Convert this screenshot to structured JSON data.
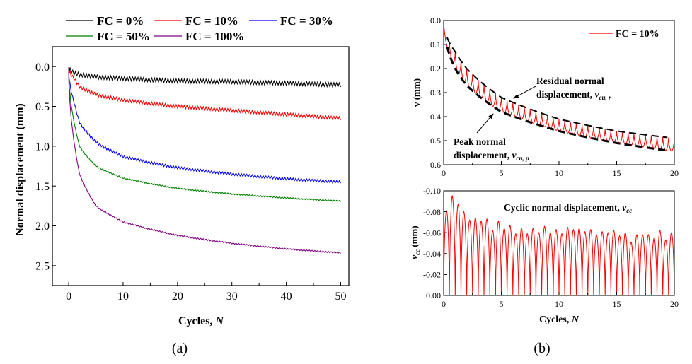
{
  "chart_data": [
    {
      "panel": "(a)",
      "type": "line",
      "xlabel": "Cycles, N",
      "ylabel": "Normal displacement (mm)",
      "xlim": [
        -3,
        51.5
      ],
      "ylim": [
        -0.25,
        2.75
      ],
      "y_inverted": true,
      "xticks": [
        0,
        10,
        20,
        30,
        40,
        50
      ],
      "yticks": [
        0.0,
        0.5,
        1.0,
        1.5,
        2.0,
        2.5
      ],
      "ytick_labels": [
        "0.0",
        "0.5",
        "1.0",
        "1.5",
        "2.0",
        "2.5"
      ],
      "legend_placement": "top, outside",
      "x": [
        0,
        1,
        2,
        5,
        10,
        20,
        30,
        40,
        50
      ],
      "series": [
        {
          "name": "FC = 0%",
          "color": "#000000",
          "values": [
            0,
            0.08,
            0.1,
            0.13,
            0.15,
            0.18,
            0.19,
            0.21,
            0.23
          ],
          "oscillation": 0.05
        },
        {
          "name": "FC = 10%",
          "color": "#ff0000",
          "values": [
            0,
            0.15,
            0.25,
            0.35,
            0.42,
            0.5,
            0.55,
            0.6,
            0.65
          ],
          "oscillation": 0.04
        },
        {
          "name": "FC = 30%",
          "color": "#0000ff",
          "values": [
            0,
            0.45,
            0.7,
            0.95,
            1.13,
            1.27,
            1.35,
            1.41,
            1.45
          ],
          "oscillation": 0.03
        },
        {
          "name": "FC = 50%",
          "color": "#008000",
          "values": [
            0,
            0.7,
            1.0,
            1.25,
            1.4,
            1.53,
            1.6,
            1.65,
            1.69
          ],
          "oscillation": 0.015
        },
        {
          "name": "FC = 100%",
          "color": "#800080",
          "values": [
            0,
            0.95,
            1.35,
            1.75,
            1.95,
            2.12,
            2.22,
            2.29,
            2.34
          ],
          "oscillation": 0.015
        }
      ]
    },
    {
      "panel": "(b) top",
      "type": "line",
      "xlabel": "",
      "ylabel": "v (mm)",
      "xlim": [
        0,
        20
      ],
      "ylim": [
        0,
        0.6
      ],
      "y_inverted": true,
      "xticks": [
        0,
        5,
        10,
        15,
        20
      ],
      "yticks": [
        0.0,
        0.1,
        0.2,
        0.3,
        0.4,
        0.5,
        0.6
      ],
      "ytick_labels": [
        "0.0",
        "0.1",
        "0.2",
        "0.3",
        "0.4",
        "0.5",
        "0.6"
      ],
      "legend_placement": "top-right",
      "x": [
        0,
        1,
        2,
        5,
        10,
        15,
        20
      ],
      "series": [
        {
          "name": "FC = 10%",
          "color": "#ff0000",
          "cycle_period": 0.5
        }
      ],
      "envelopes": [
        {
          "label_line1": "Residual normal",
          "label_line2": "displacement, ",
          "symbol": "v",
          "subscript": "cu, r",
          "values": [
            0,
            0.13,
            0.2,
            0.32,
            0.41,
            0.46,
            0.49
          ]
        },
        {
          "label_line1": "Peak normal",
          "label_line2": "displacement, ",
          "symbol": "v",
          "subscript": "cu, p",
          "values": [
            0,
            0.2,
            0.27,
            0.38,
            0.46,
            0.51,
            0.545
          ]
        }
      ]
    },
    {
      "panel": "(b) bottom",
      "type": "line",
      "xlabel": "Cycles, N",
      "ylabel_symbol": "v",
      "ylabel_sub": "cc",
      "ylabel_unit": " (mm)",
      "xlim": [
        0,
        20
      ],
      "ylim": [
        0,
        -0.1
      ],
      "xticks": [
        0,
        5,
        10,
        15,
        20
      ],
      "yticks": [
        0.0,
        -0.02,
        -0.04,
        -0.06,
        -0.08,
        -0.1
      ],
      "ytick_labels": [
        "0.00",
        "-0.02",
        "-0.04",
        "-0.06",
        "-0.08",
        "-0.10"
      ],
      "annotation": {
        "text": "Cyclic normal displacement, ",
        "symbol": "v",
        "subscript": "cc"
      },
      "color": "#ff0000",
      "cycle_period": 0.5,
      "peak_values": [
        -0.081,
        -0.095,
        -0.087,
        -0.08,
        -0.072,
        -0.074,
        -0.071,
        -0.073,
        -0.062,
        -0.071,
        -0.064,
        -0.067,
        -0.059,
        -0.064,
        -0.059,
        -0.064,
        -0.06,
        -0.066,
        -0.06,
        -0.063,
        -0.059,
        -0.065,
        -0.063,
        -0.064,
        -0.061,
        -0.063,
        -0.058,
        -0.061,
        -0.06,
        -0.062,
        -0.057,
        -0.06,
        -0.051,
        -0.058,
        -0.058,
        -0.058,
        -0.055,
        -0.062,
        -0.053,
        -0.06
      ]
    }
  ],
  "captions": {
    "a": "(a)",
    "b": "(b)"
  }
}
